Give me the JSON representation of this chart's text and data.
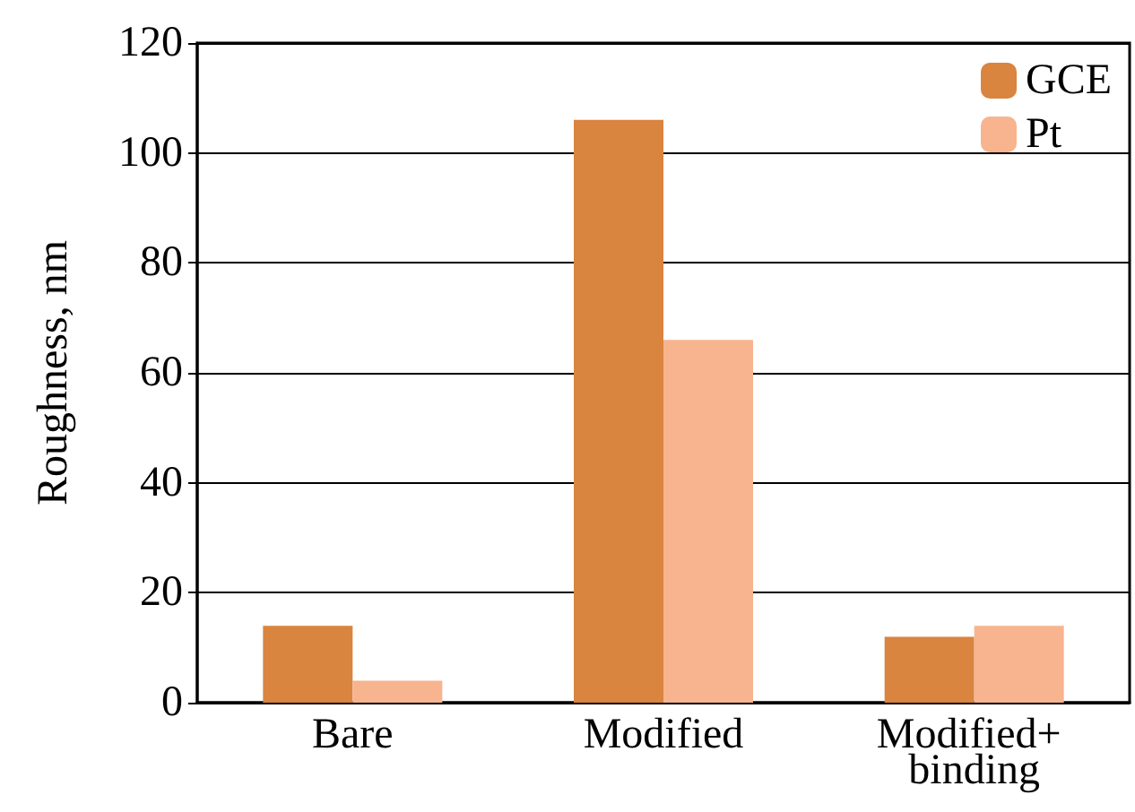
{
  "chart_data": {
    "type": "bar",
    "ylabel": "Roughness, nm",
    "categories": [
      "Bare",
      "Modified",
      "Modified+ binding"
    ],
    "series": [
      {
        "name": "GCE",
        "color": "#d9843f",
        "values": [
          14,
          106,
          12
        ]
      },
      {
        "name": "Pt",
        "color": "#f7b48f",
        "values": [
          4,
          66,
          14
        ]
      }
    ],
    "ylim": [
      0,
      120
    ],
    "yticks": [
      0,
      20,
      40,
      60,
      80,
      100,
      120
    ],
    "grid": "y",
    "legend": "top right"
  }
}
